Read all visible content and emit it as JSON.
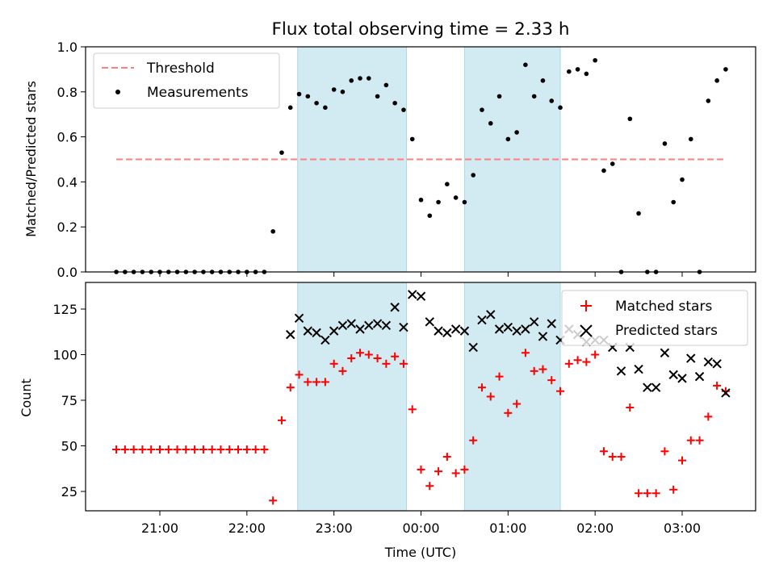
{
  "chart_data": [
    {
      "type": "scatter",
      "title": "Flux total observing time = 2.33 h",
      "ylabel": "Matched/Predicted stars",
      "xlabel": "",
      "ylim": [
        0,
        1.0
      ],
      "yticks": [
        "0.0",
        "0.2",
        "0.4",
        "0.6",
        "0.8",
        "1.0"
      ],
      "grid": false,
      "legend_position": "upper-left",
      "threshold": {
        "name": "Threshold",
        "value": 0.5,
        "x_range": [
          "20:30",
          "03:30"
        ],
        "color": "#ff7f7f"
      },
      "series": [
        {
          "name": "Measurements",
          "color": "#000000",
          "x": [
            "20:30",
            "20:36",
            "20:42",
            "20:48",
            "20:54",
            "21:00",
            "21:06",
            "21:12",
            "21:18",
            "21:24",
            "21:30",
            "21:36",
            "21:42",
            "21:48",
            "21:54",
            "22:00",
            "22:06",
            "22:12",
            "22:18",
            "22:24",
            "22:30",
            "22:36",
            "22:42",
            "22:48",
            "22:54",
            "23:00",
            "23:06",
            "23:12",
            "23:18",
            "23:24",
            "23:30",
            "23:36",
            "23:42",
            "23:48",
            "23:54",
            "00:00",
            "00:06",
            "00:12",
            "00:18",
            "00:24",
            "00:30",
            "00:36",
            "00:42",
            "00:48",
            "00:54",
            "01:00",
            "01:06",
            "01:12",
            "01:18",
            "01:24",
            "01:30",
            "01:36",
            "01:42",
            "01:48",
            "01:54",
            "02:00",
            "02:06",
            "02:12",
            "02:18",
            "02:24",
            "02:30",
            "02:36",
            "02:42",
            "02:48",
            "02:54",
            "03:00",
            "03:06",
            "03:12",
            "03:18",
            "03:24",
            "03:30"
          ],
          "values": [
            0,
            0,
            0,
            0,
            0,
            0,
            0,
            0,
            0,
            0,
            0,
            0,
            0,
            0,
            0,
            0,
            0,
            0,
            0.18,
            0.53,
            0.73,
            0.79,
            0.78,
            0.75,
            0.73,
            0.81,
            0.8,
            0.85,
            0.86,
            0.86,
            0.78,
            0.83,
            0.75,
            0.72,
            0.59,
            0.32,
            0.25,
            0.31,
            0.39,
            0.33,
            0.31,
            0.43,
            0.72,
            0.66,
            0.78,
            0.59,
            0.62,
            0.92,
            0.78,
            0.85,
            0.76,
            0.73,
            0.89,
            0.9,
            0.88,
            0.94,
            0.45,
            0.48,
            0,
            0.68,
            0.26,
            0,
            0,
            0.57,
            0.31,
            0.41,
            0.59,
            0,
            0.76,
            0.85,
            0.9
          ]
        }
      ],
      "shaded_intervals": [
        [
          "22:35",
          "23:50"
        ],
        [
          "00:30",
          "01:36"
        ]
      ]
    },
    {
      "type": "scatter",
      "xlabel": "Time (UTC)",
      "ylabel": "Count",
      "ylim": [
        14,
        140
      ],
      "yticks": [
        "25",
        "50",
        "75",
        "100",
        "125"
      ],
      "xticks": [
        "21:00",
        "22:00",
        "23:00",
        "00:00",
        "01:00",
        "02:00",
        "03:00"
      ],
      "grid": false,
      "legend_position": "upper-right",
      "shaded_intervals": [
        [
          "22:35",
          "23:50"
        ],
        [
          "00:30",
          "01:36"
        ]
      ],
      "series": [
        {
          "name": "Matched stars",
          "marker": "plus",
          "color": "#ff0000",
          "x": [
            "20:30",
            "20:36",
            "20:42",
            "20:48",
            "20:54",
            "21:00",
            "21:06",
            "21:12",
            "21:18",
            "21:24",
            "21:30",
            "21:36",
            "21:42",
            "21:48",
            "21:54",
            "22:00",
            "22:06",
            "22:12",
            "22:18",
            "22:24",
            "22:30",
            "22:36",
            "22:42",
            "22:48",
            "22:54",
            "23:00",
            "23:06",
            "23:12",
            "23:18",
            "23:24",
            "23:30",
            "23:36",
            "23:42",
            "23:48",
            "23:54",
            "00:00",
            "00:06",
            "00:12",
            "00:18",
            "00:24",
            "00:30",
            "00:36",
            "00:42",
            "00:48",
            "00:54",
            "01:00",
            "01:06",
            "01:12",
            "01:18",
            "01:24",
            "01:30",
            "01:36",
            "01:42",
            "01:48",
            "01:54",
            "02:00",
            "02:06",
            "02:12",
            "02:18",
            "02:24",
            "02:30",
            "02:36",
            "02:42",
            "02:48",
            "02:54",
            "03:00",
            "03:06",
            "03:12",
            "03:18",
            "03:24",
            "03:30"
          ],
          "values": [
            48,
            48,
            48,
            48,
            48,
            48,
            48,
            48,
            48,
            48,
            48,
            48,
            48,
            48,
            48,
            48,
            48,
            48,
            20,
            64,
            82,
            89,
            85,
            85,
            85,
            95,
            91,
            98,
            101,
            100,
            98,
            95,
            99,
            95,
            70,
            37,
            28,
            36,
            44,
            35,
            37,
            53,
            82,
            77,
            88,
            68,
            73,
            101,
            91,
            92,
            86,
            80,
            95,
            97,
            96,
            100,
            47,
            44,
            44,
            71,
            24,
            24,
            24,
            47,
            26,
            42,
            53,
            53,
            66,
            83,
            80
          ]
        },
        {
          "name": "Predicted stars",
          "marker": "x",
          "color": "#000000",
          "x": [
            "22:30",
            "22:36",
            "22:42",
            "22:48",
            "22:54",
            "23:00",
            "23:06",
            "23:12",
            "23:18",
            "23:24",
            "23:30",
            "23:36",
            "23:42",
            "23:48",
            "23:54",
            "00:00",
            "00:06",
            "00:12",
            "00:18",
            "00:24",
            "00:30",
            "00:36",
            "00:42",
            "00:48",
            "00:54",
            "01:00",
            "01:06",
            "01:12",
            "01:18",
            "01:24",
            "01:30",
            "01:36",
            "01:42",
            "01:48",
            "01:54",
            "02:00",
            "02:06",
            "02:12",
            "02:18",
            "02:24",
            "02:30",
            "02:36",
            "02:42",
            "02:48",
            "02:54",
            "03:00",
            "03:06",
            "03:12",
            "03:18",
            "03:24",
            "03:30"
          ],
          "values": [
            111,
            120,
            113,
            112,
            108,
            113,
            116,
            117,
            114,
            116,
            117,
            116,
            126,
            115,
            133,
            132,
            118,
            113,
            112,
            114,
            113,
            104,
            119,
            122,
            114,
            115,
            113,
            114,
            118,
            110,
            117,
            108,
            114,
            111,
            107,
            108,
            108,
            104,
            91,
            104,
            92,
            82,
            82,
            101,
            89,
            87,
            98,
            88,
            96,
            95,
            79
          ]
        }
      ]
    }
  ],
  "colors": {
    "shade": "#add8e6",
    "threshold": "#ff7f7f",
    "matched": "#ff0000",
    "predicted": "#000000"
  }
}
